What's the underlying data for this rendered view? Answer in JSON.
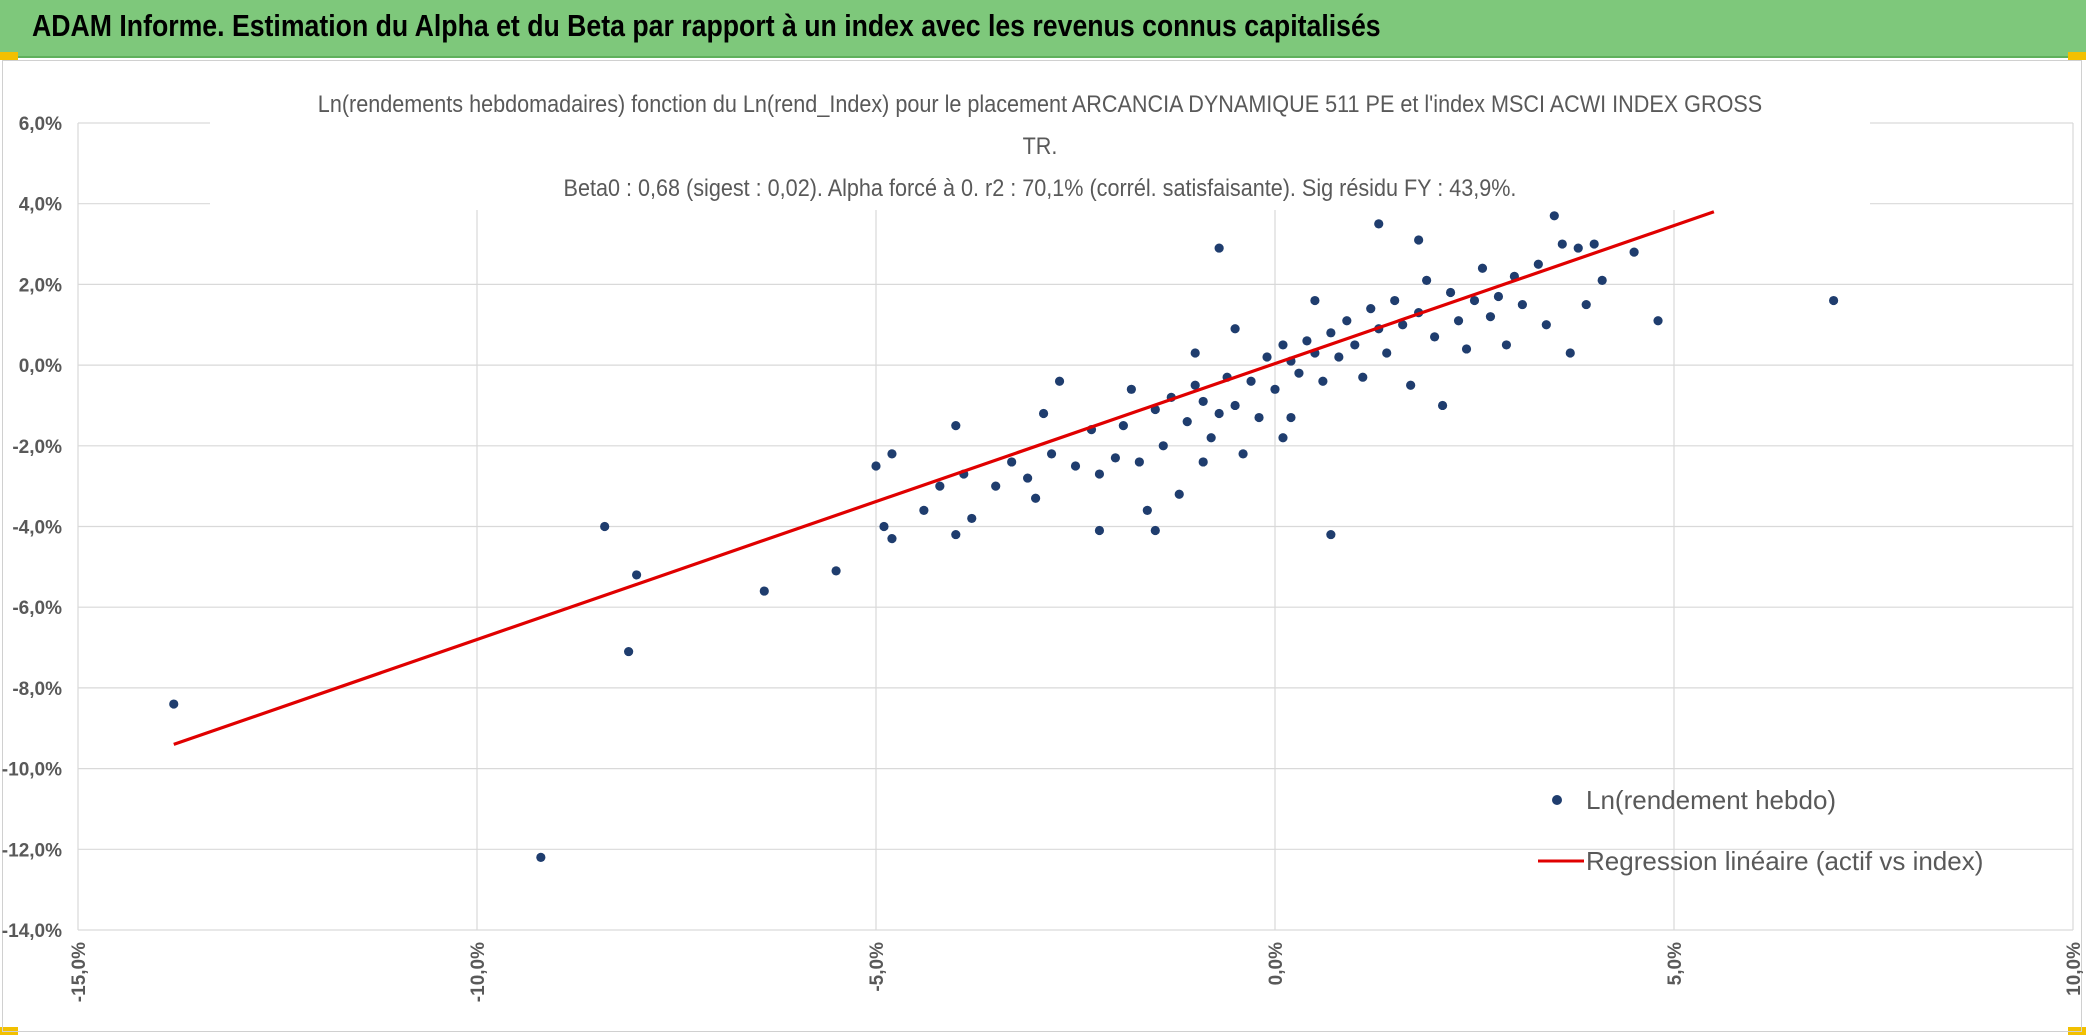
{
  "header": {
    "title": "ADAM Informe. Estimation du Alpha et du Beta par rapport à un index avec les revenus connus capitalisés"
  },
  "colors": {
    "banner": "#7ec87b",
    "points": "#1f3d6e",
    "regression": "#e00000",
    "grid": "#d9d9d9",
    "text": "#595959"
  },
  "chart_data": {
    "type": "scatter",
    "title_line1": "Ln(rendements hebdomadaires) fonction du Ln(rend_Index) pour le placement ARCANCIA DYNAMIQUE 511 PE et l'index MSCI ACWI INDEX GROSS",
    "title_line2": "TR.",
    "subtitle": "Beta0 : 0,68 (sigest : 0,02). Alpha forcé à 0. r2 : 70,1% (corrél. satisfaisante). Sig résidu FY : 43,9%.",
    "xlim": [
      -15,
      10
    ],
    "ylim": [
      -14,
      6
    ],
    "x_ticks": [
      "-15,0%",
      "-10,0%",
      "-5,0%",
      "0,0%",
      "5,0%",
      "10,0%"
    ],
    "y_ticks": [
      "6,0%",
      "4,0%",
      "2,0%",
      "0,0%",
      "-2,0%",
      "-4,0%",
      "-6,0%",
      "-8,0%",
      "-10,0%",
      "-12,0%",
      "-14,0%"
    ],
    "grid": true,
    "legend_position": "bottom-right",
    "series": [
      {
        "name": "Ln(rendement hebdo)",
        "kind": "scatter",
        "points": [
          [
            -13.8,
            -8.4
          ],
          [
            -9.2,
            -12.2
          ],
          [
            -8.4,
            -4.0
          ],
          [
            -8.1,
            -7.1
          ],
          [
            -8.0,
            -5.2
          ],
          [
            -6.4,
            -5.6
          ],
          [
            -5.5,
            -5.1
          ],
          [
            -5.0,
            -2.5
          ],
          [
            -4.9,
            -4.0
          ],
          [
            -4.8,
            -4.3
          ],
          [
            -4.8,
            -2.2
          ],
          [
            -4.4,
            -3.6
          ],
          [
            -4.2,
            -3.0
          ],
          [
            -4.0,
            -4.2
          ],
          [
            -4.0,
            -1.5
          ],
          [
            -3.9,
            -2.7
          ],
          [
            -3.8,
            -3.8
          ],
          [
            -3.5,
            -3.0
          ],
          [
            -3.3,
            -2.4
          ],
          [
            -3.1,
            -2.8
          ],
          [
            -3.0,
            -3.3
          ],
          [
            -2.9,
            -1.2
          ],
          [
            -2.8,
            -2.2
          ],
          [
            -2.7,
            -0.4
          ],
          [
            -2.5,
            -2.5
          ],
          [
            -2.3,
            -1.6
          ],
          [
            -2.2,
            -2.7
          ],
          [
            -2.0,
            -2.3
          ],
          [
            -1.9,
            -1.5
          ],
          [
            -1.8,
            -0.6
          ],
          [
            -1.7,
            -2.4
          ],
          [
            -1.6,
            -3.6
          ],
          [
            -1.5,
            -1.1
          ],
          [
            -1.5,
            -4.1
          ],
          [
            -1.4,
            -2.0
          ],
          [
            -1.3,
            -0.8
          ],
          [
            -1.2,
            -3.2
          ],
          [
            -1.1,
            -1.4
          ],
          [
            -1.0,
            -0.5
          ],
          [
            -0.9,
            -2.4
          ],
          [
            -0.9,
            -0.9
          ],
          [
            -0.8,
            -1.8
          ],
          [
            -0.7,
            -1.2
          ],
          [
            -0.6,
            -0.3
          ],
          [
            -0.5,
            -1.0
          ],
          [
            -0.4,
            -2.2
          ],
          [
            -0.3,
            -0.4
          ],
          [
            -0.2,
            -1.3
          ],
          [
            -0.1,
            0.2
          ],
          [
            0.0,
            -0.6
          ],
          [
            0.1,
            -1.8
          ],
          [
            0.1,
            0.5
          ],
          [
            0.2,
            0.1
          ],
          [
            0.3,
            -0.2
          ],
          [
            0.4,
            0.6
          ],
          [
            0.5,
            0.3
          ],
          [
            0.6,
            -0.4
          ],
          [
            0.7,
            0.8
          ],
          [
            0.8,
            0.2
          ],
          [
            0.9,
            1.1
          ],
          [
            1.0,
            0.5
          ],
          [
            1.1,
            -0.3
          ],
          [
            1.2,
            1.4
          ],
          [
            1.3,
            0.9
          ],
          [
            1.4,
            0.3
          ],
          [
            1.5,
            1.6
          ],
          [
            1.6,
            1.0
          ],
          [
            1.7,
            -0.5
          ],
          [
            1.8,
            1.3
          ],
          [
            1.9,
            2.1
          ],
          [
            2.0,
            0.7
          ],
          [
            2.1,
            -1.0
          ],
          [
            2.2,
            1.8
          ],
          [
            2.3,
            1.1
          ],
          [
            2.4,
            0.4
          ],
          [
            2.5,
            1.6
          ],
          [
            2.6,
            2.4
          ],
          [
            2.7,
            1.2
          ],
          [
            2.8,
            1.7
          ],
          [
            2.9,
            0.5
          ],
          [
            3.0,
            2.2
          ],
          [
            3.1,
            1.5
          ],
          [
            3.3,
            2.5
          ],
          [
            3.4,
            1.0
          ],
          [
            3.5,
            3.7
          ],
          [
            3.6,
            3.0
          ],
          [
            3.7,
            0.3
          ],
          [
            3.8,
            2.9
          ],
          [
            3.9,
            1.5
          ],
          [
            4.0,
            3.0
          ],
          [
            4.1,
            2.1
          ],
          [
            4.5,
            2.8
          ],
          [
            4.8,
            1.1
          ],
          [
            7.0,
            1.6
          ],
          [
            -0.7,
            2.9
          ],
          [
            1.3,
            3.5
          ],
          [
            1.8,
            3.1
          ],
          [
            0.7,
            -4.2
          ],
          [
            -2.2,
            -4.1
          ],
          [
            0.2,
            -1.3
          ],
          [
            -0.5,
            0.9
          ],
          [
            0.5,
            1.6
          ],
          [
            -1.0,
            0.3
          ]
        ]
      },
      {
        "name": "Regression linéaire (actif vs index)",
        "kind": "line",
        "points": [
          [
            -13.8,
            -9.4
          ],
          [
            5.5,
            3.8
          ]
        ]
      }
    ]
  }
}
